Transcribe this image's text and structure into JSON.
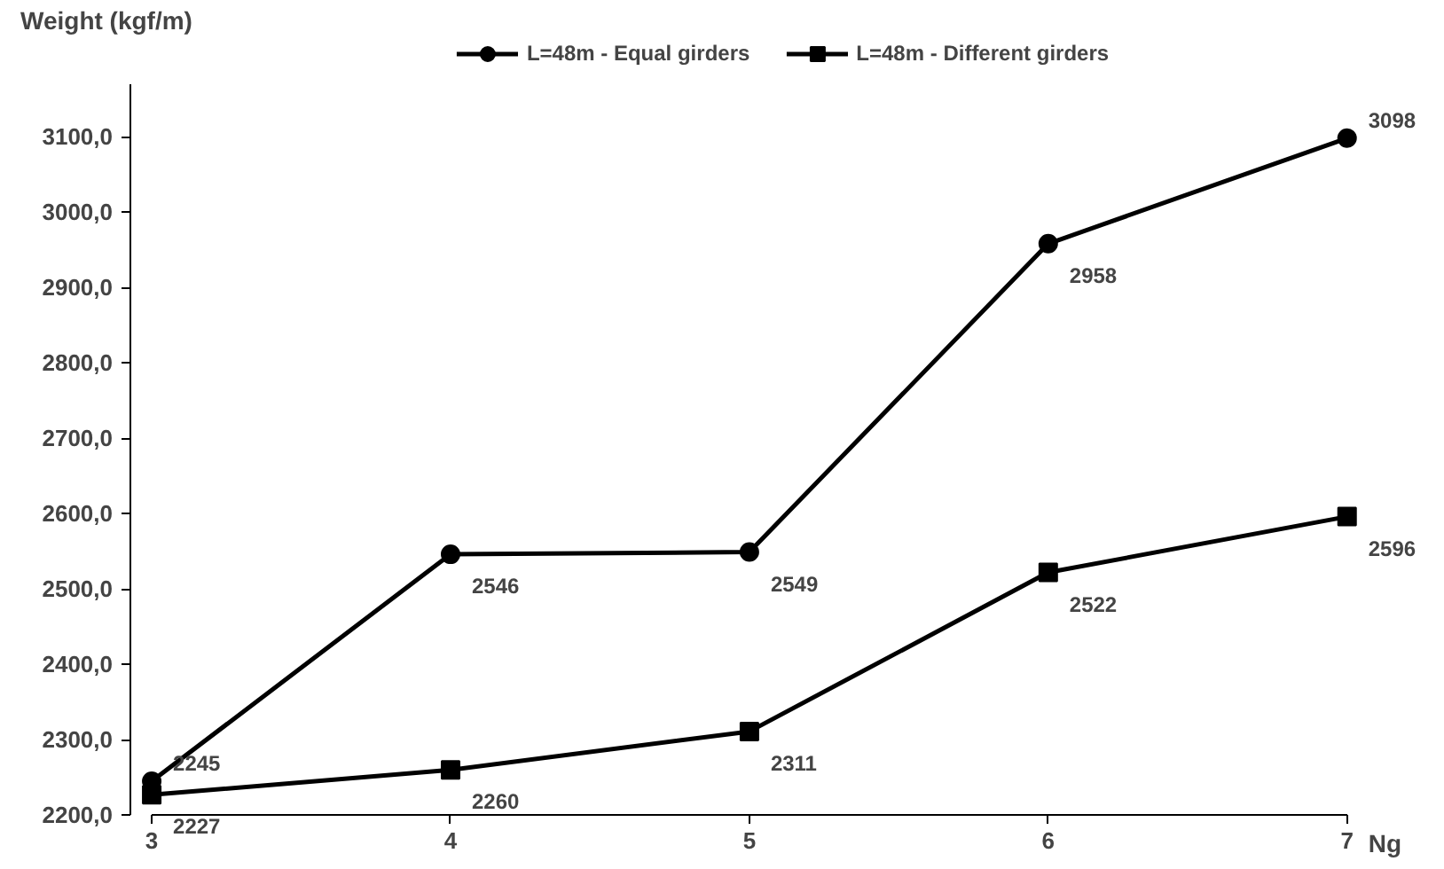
{
  "chart_data": {
    "type": "line",
    "xlabel": "Ng",
    "ylabel": "Weight (kgf/m)",
    "x": [
      3,
      4,
      5,
      6,
      7
    ],
    "series": [
      {
        "name": "L=48m - Equal girders",
        "color": "#000000",
        "marker": "circle",
        "values": [
          2245,
          2546,
          2549,
          2958,
          3098
        ]
      },
      {
        "name": "L=48m - Different girders",
        "color": "#000000",
        "marker": "square",
        "values": [
          2227,
          2260,
          2311,
          2522,
          2596
        ]
      }
    ],
    "xlim": [
      3,
      7
    ],
    "xticks": [
      3,
      4,
      5,
      6,
      7
    ],
    "ylim": [
      2200,
      3170
    ],
    "yticks": [
      {
        "value": 2200,
        "label": "2200,0"
      },
      {
        "value": 2300,
        "label": "2300,0"
      },
      {
        "value": 2400,
        "label": "2400,0"
      },
      {
        "value": 2500,
        "label": "2500,0"
      },
      {
        "value": 2600,
        "label": "2600,0"
      },
      {
        "value": 2700,
        "label": "2700,0"
      },
      {
        "value": 2800,
        "label": "2800,0"
      },
      {
        "value": 2900,
        "label": "2900,0"
      },
      {
        "value": 3000,
        "label": "3000,0"
      },
      {
        "value": 3100,
        "label": "3100,0"
      }
    ],
    "data_labels": true,
    "legend": "top",
    "grid": false,
    "line_style": "solid"
  }
}
